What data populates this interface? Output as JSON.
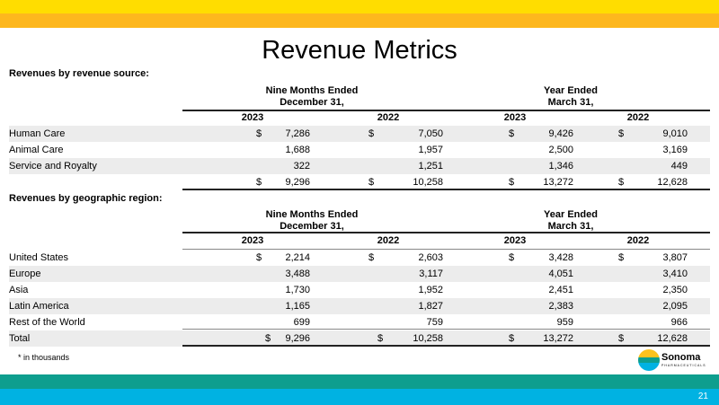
{
  "title": "Revenue Metrics",
  "colors": {
    "yellow": "#FFDD00",
    "orange": "#FDB71E",
    "teal": "#0E9E8E",
    "blue": "#00B2E2",
    "stripe": "#ECECEC"
  },
  "groups": {
    "nine_months": [
      "Nine Months Ended",
      "December 31,"
    ],
    "year_ended": [
      "Year Ended",
      "March 31,"
    ]
  },
  "years": [
    "2023",
    "2022",
    "2023",
    "2022"
  ],
  "source": {
    "heading": "Revenues by revenue source:",
    "rows": [
      {
        "label": "Human Care",
        "d": [
          true,
          true,
          true,
          true
        ],
        "values": [
          "7,286",
          "7,050",
          "9,426",
          "9,010"
        ]
      },
      {
        "label": "Animal Care",
        "d": [
          false,
          false,
          false,
          false
        ],
        "values": [
          "1,688",
          "1,957",
          "2,500",
          "3,169"
        ]
      },
      {
        "label": "Service and Royalty",
        "d": [
          false,
          false,
          false,
          false
        ],
        "values": [
          "322",
          "1,251",
          "1,346",
          "449"
        ]
      },
      {
        "label": "",
        "d": [
          true,
          true,
          true,
          true
        ],
        "values": [
          "9,296",
          "10,258",
          "13,272",
          "12,628"
        ]
      }
    ]
  },
  "region": {
    "heading": "Revenues by geographic region:",
    "rows": [
      {
        "label": "United States",
        "d": [
          true,
          true,
          true,
          true
        ],
        "values": [
          "2,214",
          "2,603",
          "3,428",
          "3,807"
        ]
      },
      {
        "label": "Europe",
        "d": [
          false,
          false,
          false,
          false
        ],
        "values": [
          "3,488",
          "3,117",
          "4,051",
          "3,410"
        ]
      },
      {
        "label": "Asia",
        "d": [
          false,
          false,
          false,
          false
        ],
        "values": [
          "1,730",
          "1,952",
          "2,451",
          "2,350"
        ]
      },
      {
        "label": "Latin America",
        "d": [
          false,
          false,
          false,
          false
        ],
        "values": [
          "1,165",
          "1,827",
          "2,383",
          "2,095"
        ]
      },
      {
        "label": "Rest of the World",
        "d": [
          false,
          false,
          false,
          false
        ],
        "values": [
          "699",
          "759",
          "959",
          "966"
        ]
      },
      {
        "label": "Total",
        "d": [
          true,
          true,
          true,
          true
        ],
        "values": [
          "9,296",
          "10,258",
          "13,272",
          "12,628"
        ]
      }
    ]
  },
  "currency_symbol": "$",
  "footnote": "* in thousands",
  "logo": {
    "name": "Sonoma",
    "sub": "PHARMACEUTICALS"
  },
  "page_number": "21"
}
